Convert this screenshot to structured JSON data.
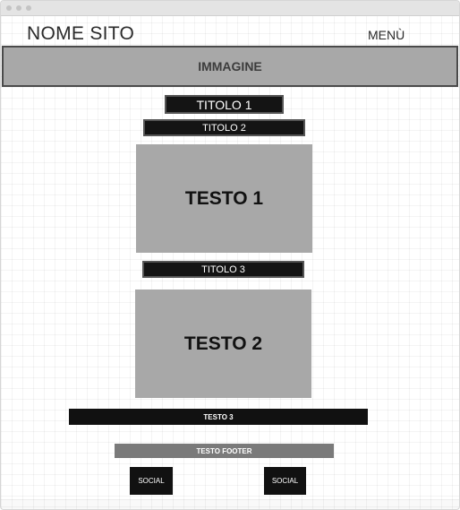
{
  "header": {
    "site_name": "NOME SITO",
    "menu_label": "MENÙ"
  },
  "hero": {
    "label": "IMMAGINE"
  },
  "content": {
    "title_1": "TITOLO 1",
    "title_2": "TITOLO 2",
    "text_1": "TESTO 1",
    "title_3": "TITOLO 3",
    "text_2": "TESTO 2",
    "text_3": "TESTO 3"
  },
  "footer": {
    "text": "TESTO FOOTER",
    "social_1": "SOCIAL",
    "social_2": "SOCIAL"
  },
  "colors": {
    "placeholder_gray": "#a8a8a8",
    "dark_bar": "#141414",
    "footer_gray": "#7a7a7a"
  }
}
